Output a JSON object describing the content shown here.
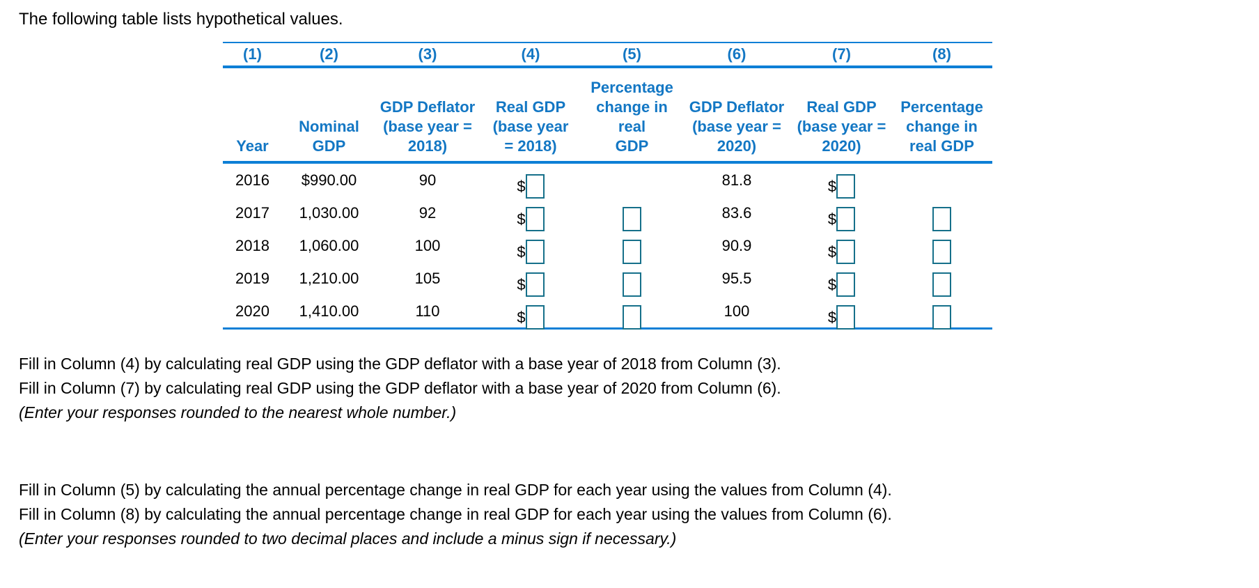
{
  "page": {
    "intro": "The following table lists hypothetical values."
  },
  "table": {
    "currency_symbol": "$",
    "column_numbers": [
      "(1)",
      "(2)",
      "(3)",
      "(4)",
      "(5)",
      "(6)",
      "(7)",
      "(8)"
    ],
    "column_headers": [
      "Year",
      "Nominal\nGDP",
      "GDP Deflator\n(base year =\n2018)",
      "Real GDP\n(base year\n= 2018)",
      "Percentage\nchange in real\nGDP",
      "GDP Deflator\n(base year =\n2020)",
      "Real GDP\n(base year =\n2020)",
      "Percentage\nchange in\nreal GDP"
    ],
    "rows": [
      {
        "year": "2016",
        "nominal_gdp": "$990.00",
        "gdp_deflator_2018": "90",
        "gdp_deflator_2020": "81.8"
      },
      {
        "year": "2017",
        "nominal_gdp": "1,030.00",
        "gdp_deflator_2018": "92",
        "gdp_deflator_2020": "83.6"
      },
      {
        "year": "2018",
        "nominal_gdp": "1,060.00",
        "gdp_deflator_2018": "100",
        "gdp_deflator_2020": "90.9"
      },
      {
        "year": "2019",
        "nominal_gdp": "1,210.00",
        "gdp_deflator_2018": "105",
        "gdp_deflator_2020": "95.5"
      },
      {
        "year": "2020",
        "nominal_gdp": "1,410.00",
        "gdp_deflator_2018": "110",
        "gdp_deflator_2020": "100"
      }
    ]
  },
  "instructions": {
    "block1": {
      "line1": "Fill in Column (4) by calculating real GDP using the GDP deflator with a base year of 2018 from Column (3).",
      "line2": "Fill in Column (7) by calculating real GDP using the GDP deflator with a base year of 2020 from Column (6).",
      "note": "(Enter your responses rounded to the nearest whole number.)"
    },
    "block2": {
      "line1": "Fill in Column (5) by calculating the annual percentage change in real GDP for each year using the values from Column (4).",
      "line2": "Fill in Column (8) by calculating the annual percentage change in real GDP for each year using the values from Column (6).",
      "note": "(Enter your responses rounded to two decimal places and include a minus sign if necessary.)"
    }
  },
  "colors": {
    "header_blue": "#1377c4",
    "line_blue": "#0d7fd6",
    "input_border": "#16708a"
  }
}
